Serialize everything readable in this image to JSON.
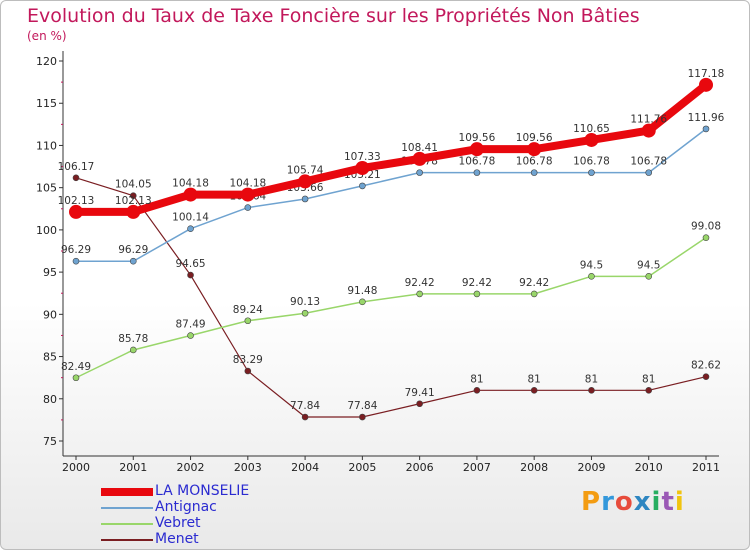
{
  "header": {
    "title": "Evolution du Taux de Taxe Foncière sur les Propriétés Non Bâties",
    "subtitle": "(en %)"
  },
  "brand": {
    "letters": [
      "P",
      "r",
      "o",
      "x",
      "i",
      "t",
      "i"
    ],
    "colors": [
      "#f39c12",
      "#3498db",
      "#e74c3c",
      "#2e86c1",
      "#27ae60",
      "#9b59b6",
      "#f1c40f"
    ]
  },
  "chart_data": {
    "type": "line",
    "title": "Evolution du Taux de Taxe Foncière sur les Propriétés Non Bâties",
    "ylabel": "(en %)",
    "x": [
      "2000",
      "2001",
      "2002",
      "2003",
      "2004",
      "2005",
      "2006",
      "2007",
      "2008",
      "2009",
      "2010",
      "2011"
    ],
    "ylim": [
      75,
      120
    ],
    "yticks": [
      75,
      80,
      85,
      90,
      95,
      100,
      105,
      110,
      115,
      120
    ],
    "grid": false,
    "legend_position": "bottom-left",
    "series": [
      {
        "name": "Menet",
        "color": "#7a1e22",
        "width": 1.2,
        "marker": 3,
        "values": [
          106.17,
          104.05,
          94.65,
          83.29,
          77.84,
          77.84,
          79.41,
          81,
          81,
          81,
          81,
          82.62
        ],
        "labels": [
          "106.17",
          "104.05",
          "94.65",
          "83.29",
          "77.84",
          "77.84",
          "79.41",
          "81",
          "81",
          "81",
          "81",
          "82.62"
        ]
      },
      {
        "name": "Vebret",
        "color": "#99d66a",
        "width": 1.5,
        "marker": 3,
        "values": [
          82.49,
          85.78,
          87.49,
          89.24,
          90.13,
          91.48,
          92.42,
          92.42,
          92.42,
          94.5,
          94.5,
          99.08
        ],
        "labels": [
          "82.49",
          "85.78",
          "87.49",
          "89.24",
          "90.13",
          "91.48",
          "92.42",
          "92.42",
          "92.42",
          "94.5",
          "94.5",
          "99.08"
        ]
      },
      {
        "name": "Antignac",
        "color": "#6fa3d0",
        "width": 1.5,
        "marker": 3,
        "values": [
          96.29,
          96.29,
          100.14,
          102.64,
          103.66,
          105.21,
          106.78,
          106.78,
          106.78,
          106.78,
          106.78,
          111.96
        ],
        "labels": [
          "96.29",
          "96.29",
          "100.14",
          "102.64",
          "103.66",
          "105.21",
          "106.78",
          "106.78",
          "106.78",
          "106.78",
          "106.78",
          "111.96"
        ]
      },
      {
        "name": "LA MONSELIE",
        "color": "#e8080e",
        "width": 8,
        "marker": 7,
        "values": [
          102.13,
          102.13,
          104.18,
          104.18,
          105.74,
          107.33,
          108.41,
          109.56,
          109.56,
          110.65,
          111.76,
          117.18
        ],
        "labels": [
          "102.13",
          "102.13",
          "104.18",
          "104.18",
          "105.74",
          "107.33",
          "108.41",
          "109.56",
          "109.56",
          "110.65",
          "111.76",
          "117.18"
        ]
      }
    ]
  },
  "legend": [
    {
      "name": "LA MONSELIE",
      "color": "#e8080e",
      "thickness": 8
    },
    {
      "name": "Antignac",
      "color": "#6fa3d0",
      "thickness": 2
    },
    {
      "name": "Vebret",
      "color": "#99d66a",
      "thickness": 2
    },
    {
      "name": "Menet",
      "color": "#7a1e22",
      "thickness": 2
    }
  ]
}
